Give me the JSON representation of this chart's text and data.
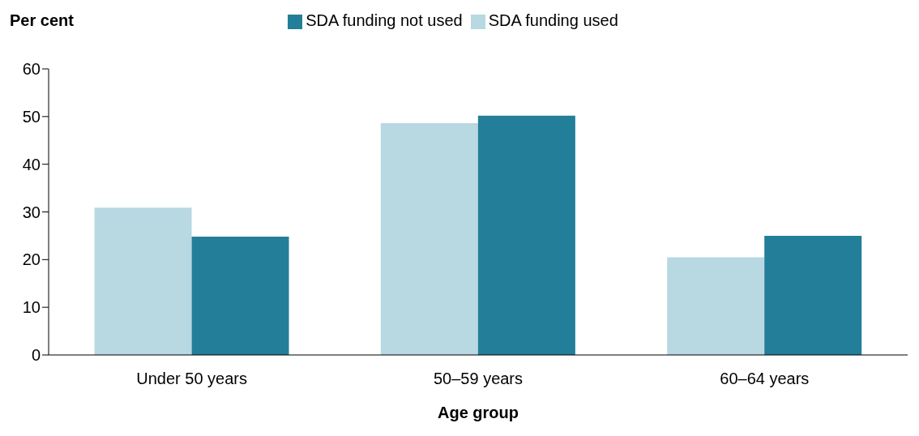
{
  "chart_data": {
    "type": "bar",
    "ylabel": "Per cent",
    "xlabel": "Age group",
    "categories": [
      "Under 50 years",
      "50–59 years",
      "60–64 years"
    ],
    "series": [
      {
        "name": "SDA funding used",
        "color": "#b8d8e2",
        "values": [
          30.9,
          48.6,
          20.5
        ]
      },
      {
        "name": "SDA funding not used",
        "color": "#237f99",
        "values": [
          24.8,
          50.2,
          25.0
        ]
      }
    ],
    "ylim": [
      0,
      60
    ],
    "yticks": [
      0,
      10,
      20,
      30,
      40,
      50,
      60
    ],
    "grid": false,
    "legend": "top"
  }
}
